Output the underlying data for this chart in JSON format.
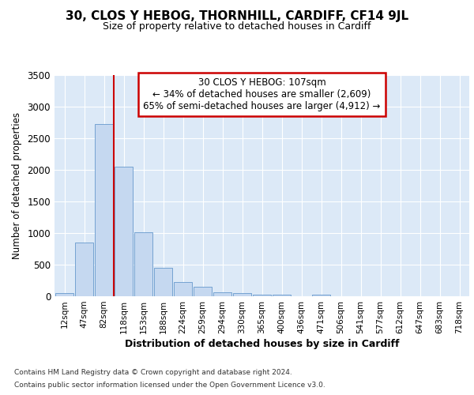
{
  "title": "30, CLOS Y HEBOG, THORNHILL, CARDIFF, CF14 9JL",
  "subtitle": "Size of property relative to detached houses in Cardiff",
  "xlabel": "Distribution of detached houses by size in Cardiff",
  "ylabel": "Number of detached properties",
  "bar_labels": [
    "12sqm",
    "47sqm",
    "82sqm",
    "118sqm",
    "153sqm",
    "188sqm",
    "224sqm",
    "259sqm",
    "294sqm",
    "330sqm",
    "365sqm",
    "400sqm",
    "436sqm",
    "471sqm",
    "506sqm",
    "541sqm",
    "577sqm",
    "612sqm",
    "647sqm",
    "683sqm",
    "718sqm"
  ],
  "bar_values": [
    55,
    850,
    2720,
    2050,
    1010,
    455,
    225,
    150,
    65,
    45,
    30,
    30,
    0,
    25,
    0,
    0,
    0,
    0,
    0,
    0,
    0
  ],
  "bar_color": "#c5d8f0",
  "bar_edge_color": "#6699cc",
  "vline_x": 2.5,
  "vline_color": "#cc0000",
  "annotation_text": "30 CLOS Y HEBOG: 107sqm\n← 34% of detached houses are smaller (2,609)\n65% of semi-detached houses are larger (4,912) →",
  "annotation_box_color": "#ffffff",
  "annotation_box_edge": "#cc0000",
  "ylim": [
    0,
    3500
  ],
  "yticks": [
    0,
    500,
    1000,
    1500,
    2000,
    2500,
    3000,
    3500
  ],
  "footer_line1": "Contains HM Land Registry data © Crown copyright and database right 2024.",
  "footer_line2": "Contains public sector information licensed under the Open Government Licence v3.0.",
  "fig_bg_color": "#ffffff",
  "plot_bg_color": "#dce9f7"
}
